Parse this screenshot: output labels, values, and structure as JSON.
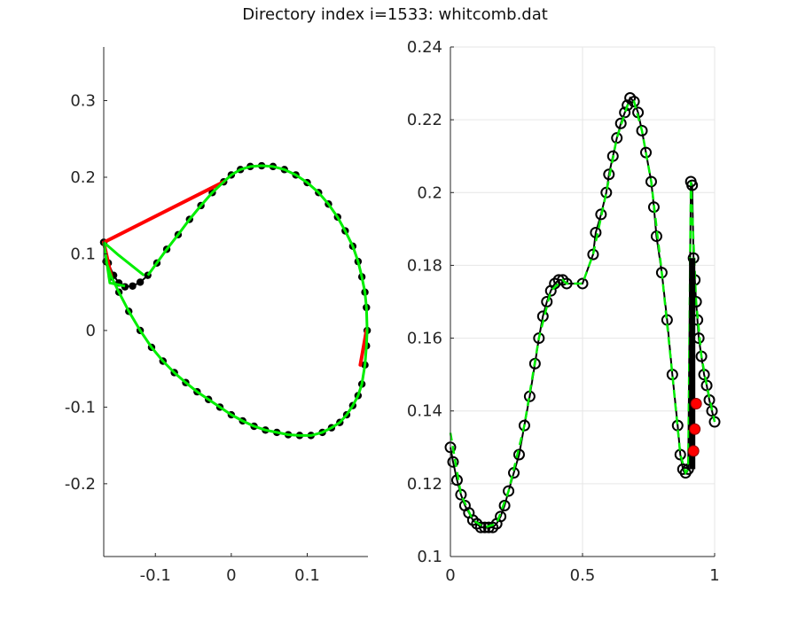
{
  "figure": {
    "title": "Directory index i=1533: whitcomb.dat"
  },
  "chart_data": [
    {
      "type": "line",
      "panel": "left",
      "xlim": [
        -0.168,
        0.18
      ],
      "ylim": [
        -0.295,
        0.37
      ],
      "grid": false,
      "x_ticks": [
        {
          "value": -0.1,
          "label": "-0.1"
        },
        {
          "value": 0,
          "label": "0"
        },
        {
          "value": 0.1,
          "label": "0.1"
        }
      ],
      "y_ticks": [
        {
          "value": 0.3,
          "label": "0.3"
        },
        {
          "value": 0.2,
          "label": "0.2"
        },
        {
          "value": 0.1,
          "label": "0.1"
        },
        {
          "value": 0,
          "label": "0"
        },
        {
          "value": -0.1,
          "label": "-0.1"
        },
        {
          "value": -0.2,
          "label": "-0.2"
        }
      ],
      "series": [
        {
          "role": "black-dotted-outline",
          "color": "#000000",
          "x": [
            -0.168,
            -0.162,
            -0.155,
            -0.148,
            -0.14,
            -0.13,
            -0.12,
            -0.11,
            -0.098,
            -0.085,
            -0.07,
            -0.055,
            -0.04,
            -0.025,
            -0.01,
            0.0,
            0.012,
            0.025,
            0.04,
            0.055,
            0.07,
            0.085,
            0.1,
            0.115,
            0.128,
            0.14,
            0.15,
            0.16,
            0.167,
            0.172,
            0.176,
            0.178,
            0.179,
            0.178,
            0.176,
            0.172,
            0.167,
            0.16,
            0.152,
            0.143,
            0.132,
            0.12,
            0.105,
            0.09,
            0.075,
            0.06,
            0.045,
            0.03,
            0.015,
            0.0,
            -0.015,
            -0.03,
            -0.045,
            -0.06,
            -0.075,
            -0.09,
            -0.105,
            -0.12,
            -0.135,
            -0.148,
            -0.158,
            -0.165,
            -0.168
          ],
          "y": [
            0.115,
            0.088,
            0.072,
            0.062,
            0.057,
            0.058,
            0.063,
            0.072,
            0.088,
            0.106,
            0.125,
            0.145,
            0.163,
            0.18,
            0.194,
            0.203,
            0.21,
            0.214,
            0.215,
            0.214,
            0.21,
            0.203,
            0.193,
            0.18,
            0.165,
            0.148,
            0.13,
            0.11,
            0.09,
            0.07,
            0.05,
            0.03,
            0.0,
            -0.02,
            -0.045,
            -0.07,
            -0.085,
            -0.098,
            -0.11,
            -0.12,
            -0.127,
            -0.133,
            -0.137,
            -0.137,
            -0.136,
            -0.133,
            -0.13,
            -0.125,
            -0.118,
            -0.11,
            -0.1,
            -0.09,
            -0.08,
            -0.068,
            -0.055,
            -0.04,
            -0.022,
            0.0,
            0.025,
            0.05,
            0.07,
            0.09,
            0.115
          ]
        },
        {
          "role": "red-segments",
          "color": "#ff0000",
          "x": [
            -0.168,
            -0.01,
            null,
            -0.168,
            -0.158,
            null,
            0.178,
            0.17
          ],
          "y": [
            0.115,
            0.194,
            null,
            0.115,
            0.07,
            null,
            0.0,
            -0.045
          ]
        },
        {
          "role": "green-outline",
          "color": "#00ee00",
          "x": [
            -0.168,
            -0.148,
            -0.115,
            null,
            -0.168,
            -0.16,
            -0.14,
            null,
            -0.11,
            -0.098,
            -0.085,
            -0.07,
            -0.055,
            -0.04,
            -0.025,
            -0.01,
            0.0,
            0.012,
            0.025,
            0.04,
            0.055,
            0.07,
            0.085,
            0.1,
            0.115,
            0.128,
            0.14,
            0.15,
            0.16,
            0.167,
            0.172,
            0.176,
            0.178,
            0.179,
            0.178,
            0.176,
            0.172,
            0.167,
            0.16,
            0.152,
            0.143,
            0.132,
            0.12,
            0.105,
            0.09,
            0.075,
            0.06,
            0.045,
            0.03,
            0.015,
            0.0,
            -0.015,
            -0.03,
            -0.045,
            -0.06,
            -0.075,
            -0.09,
            -0.105,
            -0.12,
            -0.135,
            -0.148,
            -0.158,
            -0.165
          ],
          "y": [
            0.115,
            0.098,
            0.072,
            null,
            0.115,
            0.062,
            0.058,
            null,
            0.072,
            0.088,
            0.106,
            0.125,
            0.145,
            0.163,
            0.18,
            0.194,
            0.203,
            0.21,
            0.214,
            0.215,
            0.214,
            0.21,
            0.203,
            0.193,
            0.18,
            0.165,
            0.148,
            0.13,
            0.11,
            0.09,
            0.07,
            0.05,
            0.03,
            0.0,
            -0.02,
            -0.045,
            -0.07,
            -0.085,
            -0.098,
            -0.11,
            -0.12,
            -0.127,
            -0.133,
            -0.137,
            -0.137,
            -0.136,
            -0.133,
            -0.13,
            -0.125,
            -0.118,
            -0.11,
            -0.1,
            -0.09,
            -0.08,
            -0.068,
            -0.055,
            -0.04,
            -0.022,
            0.0,
            0.025,
            0.05,
            0.07,
            0.09
          ]
        }
      ]
    },
    {
      "type": "line",
      "panel": "right",
      "xlim": [
        0,
        1
      ],
      "ylim": [
        0.1,
        0.24
      ],
      "grid": true,
      "x_ticks": [
        {
          "value": 0,
          "label": "0"
        },
        {
          "value": 0.5,
          "label": "0.5"
        },
        {
          "value": 1,
          "label": "1"
        }
      ],
      "y_ticks": [
        {
          "value": 0.24,
          "label": "0.24"
        },
        {
          "value": 0.22,
          "label": "0.22"
        },
        {
          "value": 0.2,
          "label": "0.2"
        },
        {
          "value": 0.18,
          "label": "0.18"
        },
        {
          "value": 0.16,
          "label": "0.16"
        },
        {
          "value": 0.14,
          "label": "0.14"
        },
        {
          "value": 0.12,
          "label": "0.12"
        },
        {
          "value": 0.1,
          "label": "0.1"
        }
      ],
      "series": [
        {
          "role": "black-circles-line",
          "color": "#000000",
          "x": [
            0.0,
            0.01,
            0.025,
            0.04,
            0.055,
            0.07,
            0.085,
            0.1,
            0.115,
            0.13,
            0.145,
            0.16,
            0.175,
            0.19,
            0.205,
            0.22,
            0.24,
            0.26,
            0.28,
            0.3,
            0.32,
            0.335,
            0.35,
            0.365,
            0.38,
            0.395,
            0.41,
            0.425,
            0.44,
            0.5,
            0.54,
            0.55,
            0.57,
            0.59,
            0.6,
            0.615,
            0.63,
            0.645,
            0.66,
            0.67,
            0.68,
            0.695,
            0.71,
            0.725,
            0.74,
            0.76,
            0.77,
            0.78,
            0.8,
            0.82,
            0.84,
            0.86,
            0.87,
            0.88,
            0.89,
            0.9,
            0.91,
            0.915,
            0.92,
            0.925,
            0.93,
            0.935,
            0.94,
            0.95,
            0.96,
            0.97,
            0.98,
            0.99,
            1.0
          ],
          "y": [
            0.13,
            0.126,
            0.121,
            0.117,
            0.114,
            0.112,
            0.11,
            0.109,
            0.108,
            0.108,
            0.108,
            0.108,
            0.109,
            0.111,
            0.114,
            0.118,
            0.123,
            0.128,
            0.136,
            0.144,
            0.153,
            0.16,
            0.166,
            0.17,
            0.173,
            0.175,
            0.176,
            0.176,
            0.175,
            0.175,
            0.183,
            0.189,
            0.194,
            0.2,
            0.205,
            0.21,
            0.215,
            0.219,
            0.222,
            0.224,
            0.226,
            0.225,
            0.222,
            0.217,
            0.211,
            0.203,
            0.196,
            0.188,
            0.178,
            0.165,
            0.15,
            0.136,
            0.128,
            0.124,
            0.123,
            0.124,
            0.203,
            0.202,
            0.182,
            0.176,
            0.17,
            0.165,
            0.16,
            0.155,
            0.15,
            0.147,
            0.143,
            0.14,
            0.137
          ]
        },
        {
          "role": "green-dashed-line",
          "color": "#00ee00",
          "x": [
            0.0,
            0.04,
            0.085,
            0.13,
            0.175,
            0.22,
            0.28,
            0.335,
            0.38,
            0.425,
            0.44,
            0.5,
            0.54,
            0.59,
            0.63,
            0.67,
            0.695,
            0.725,
            0.76,
            0.8,
            0.84,
            0.87,
            0.89,
            0.9,
            0.91,
            0.93,
            0.95,
            0.97,
            1.0
          ],
          "y": [
            0.134,
            0.117,
            0.11,
            0.108,
            0.109,
            0.118,
            0.136,
            0.16,
            0.173,
            0.176,
            0.175,
            0.175,
            0.183,
            0.2,
            0.215,
            0.224,
            0.225,
            0.217,
            0.203,
            0.178,
            0.15,
            0.128,
            0.123,
            0.124,
            0.203,
            0.17,
            0.155,
            0.147,
            0.137
          ]
        },
        {
          "role": "black-vertical-bar",
          "color": "#000000",
          "x": [
            0.915,
            0.915
          ],
          "y": [
            0.124,
            0.182
          ]
        },
        {
          "role": "red-points",
          "color": "#ff0000",
          "x": [
            0.92,
            0.925,
            0.93
          ],
          "y": [
            0.129,
            0.135,
            0.142
          ]
        }
      ]
    }
  ]
}
